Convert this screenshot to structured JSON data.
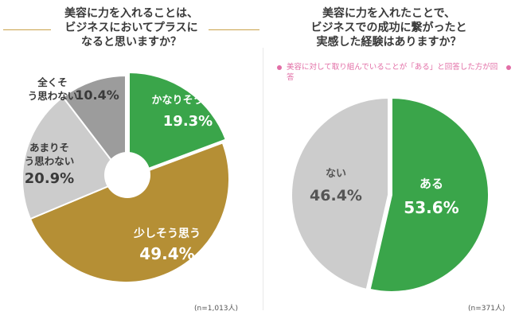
{
  "left": {
    "title_lines": [
      "美容に力を入れることは、",
      "ビジネスにおいてプラスに",
      "なると思いますか？"
    ],
    "n_label": "(n=1,013人)"
  },
  "right": {
    "title_lines": [
      "美容に力を入れたことで、",
      "ビジネスでの成功に繋がったと",
      "実感した経験はありますか？"
    ],
    "note": "美容に対して取り組んでいることが「ある」と回答した方が回答",
    "n_label": "(n=371人)"
  },
  "chart_data": [
    {
      "type": "pie",
      "categories": [
        "かなりそう思う",
        "少しそう思う",
        "あまりそう思わない",
        "全くそう思わない"
      ],
      "values": [
        19.3,
        49.4,
        20.9,
        10.4
      ],
      "value_labels": [
        "19.3%",
        "49.4%",
        "20.9%",
        "10.4%"
      ],
      "colors": [
        "#3aa54a",
        "#b58f35",
        "#cccccc",
        "#9c9c9c"
      ],
      "donut_hole": true
    },
    {
      "type": "pie",
      "categories": [
        "ある",
        "ない"
      ],
      "values": [
        53.6,
        46.4
      ],
      "value_labels": [
        "53.6%",
        "46.4%"
      ],
      "colors": [
        "#3aa54a",
        "#cccccc"
      ],
      "donut_hole": false
    }
  ]
}
